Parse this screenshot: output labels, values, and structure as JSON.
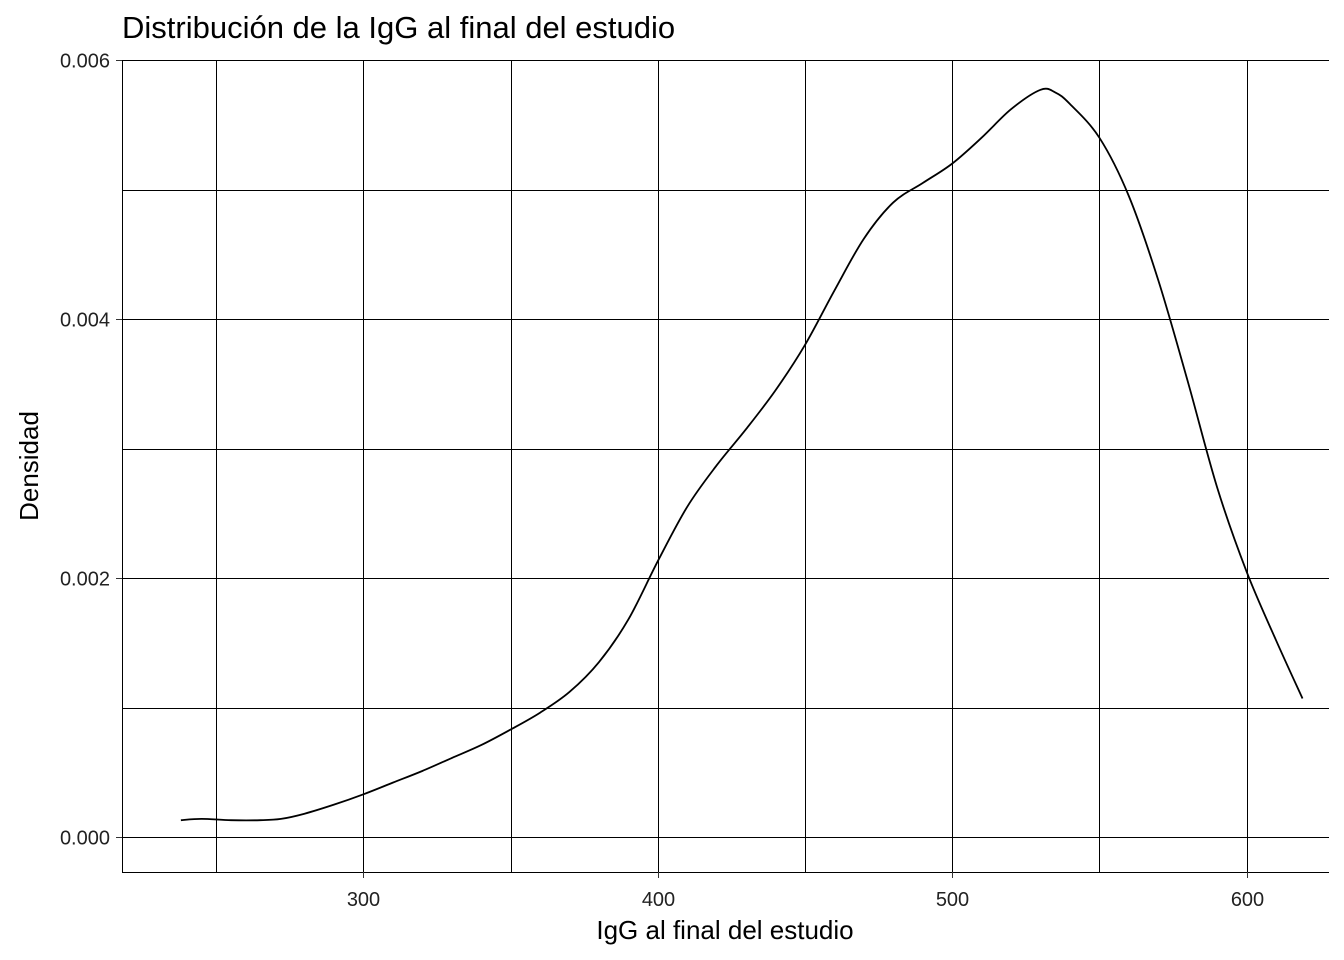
{
  "chart_data": {
    "type": "line",
    "title": "Distribución de la IgG al final del estudio",
    "xlabel": "IgG al final del estudio",
    "ylabel": "Densidad",
    "xlim": [
      218,
      628
    ],
    "ylim": [
      -0.00027,
      0.006
    ],
    "x_ticks": [
      300,
      400,
      500,
      600
    ],
    "x_tick_labels": [
      "300",
      "400",
      "500",
      "600"
    ],
    "x_minor_grid": [
      250,
      350,
      450,
      550
    ],
    "y_ticks": [
      0.0,
      0.002,
      0.004,
      0.006
    ],
    "y_tick_labels": [
      "0.000",
      "0.002",
      "0.004",
      "0.006"
    ],
    "y_minor_grid": [
      0.001,
      0.003,
      0.005
    ],
    "grid": true,
    "legend": "none",
    "line_color": "#000000",
    "series": [
      {
        "x": [
          238,
          245,
          255,
          265,
          272,
          280,
          290,
          300,
          310,
          320,
          330,
          340,
          350,
          360,
          370,
          380,
          390,
          400,
          410,
          420,
          430,
          440,
          450,
          460,
          470,
          480,
          490,
          500,
          510,
          520,
          530,
          535,
          540,
          550,
          560,
          570,
          580,
          590,
          600,
          610,
          619
        ],
        "y": [
          0.00013,
          0.00014,
          0.00013,
          0.00013,
          0.00014,
          0.00018,
          0.00025,
          0.00033,
          0.00042,
          0.00051,
          0.00061,
          0.00071,
          0.00083,
          0.00096,
          0.00112,
          0.00135,
          0.00168,
          0.00213,
          0.00255,
          0.00287,
          0.00315,
          0.00345,
          0.0038,
          0.00422,
          0.00462,
          0.0049,
          0.00505,
          0.0052,
          0.0054,
          0.00562,
          0.00577,
          0.00575,
          0.00566,
          0.0054,
          0.00495,
          0.0043,
          0.00352,
          0.0027,
          0.00205,
          0.00152,
          0.00107
        ]
      }
    ]
  }
}
